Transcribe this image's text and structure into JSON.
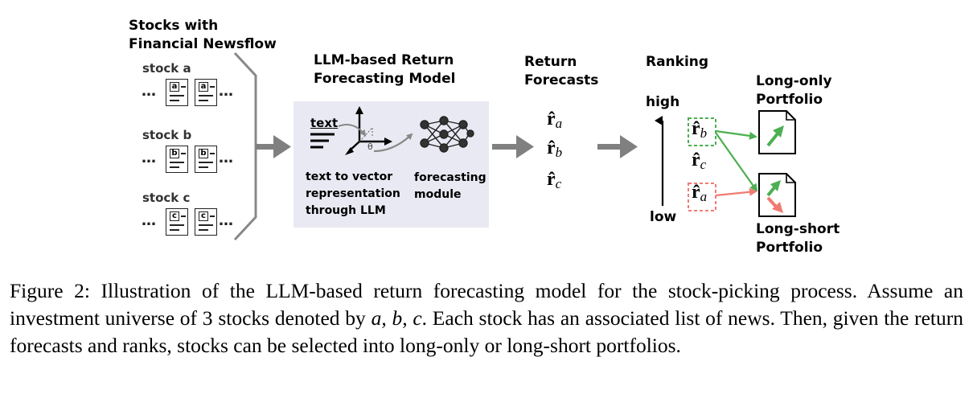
{
  "stocks": {
    "header_line1": "Stocks with",
    "header_line2": "Financial Newsflow",
    "items": [
      {
        "label": "stock a",
        "tag": "a"
      },
      {
        "label": "stock b",
        "tag": "b"
      },
      {
        "label": "stock c",
        "tag": "c"
      }
    ],
    "ellipsis": "…"
  },
  "model": {
    "header_line1": "LLM-based Return",
    "header_line2": "Forecasting Model",
    "text_icon_label": "text",
    "theta_label": "θ",
    "embed_caption_1": "text to vector",
    "embed_caption_2": "representation",
    "embed_caption_3": "through LLM",
    "module_caption_1": "forecasting",
    "module_caption_2": "module"
  },
  "forecasts": {
    "header_line1": "Return",
    "header_line2": "Forecasts",
    "symbol": "r̂",
    "subs": [
      "a",
      "b",
      "c"
    ]
  },
  "ranking": {
    "header": "Ranking",
    "high": "high",
    "low": "low",
    "order": [
      "b",
      "c",
      "a"
    ],
    "long_color": "#4caf50",
    "short_color": "#f07b72"
  },
  "portfolios": {
    "long_only_line1": "Long-only",
    "long_only_line2": "Portfolio",
    "long_short_line1": "Long-short",
    "long_short_line2": "Portfolio"
  },
  "caption": {
    "label": "Figure 2:",
    "text_part1": " Illustration of the LLM-based return forecasting model for the stock-picking process. Assume an investment universe of 3 stocks denoted by ",
    "vars": "a, b, c",
    "text_part2": ". Each stock has an associated list of news. Then, given the return forecasts and ranks, stocks can be selected into long-only or long-short portfolios."
  }
}
